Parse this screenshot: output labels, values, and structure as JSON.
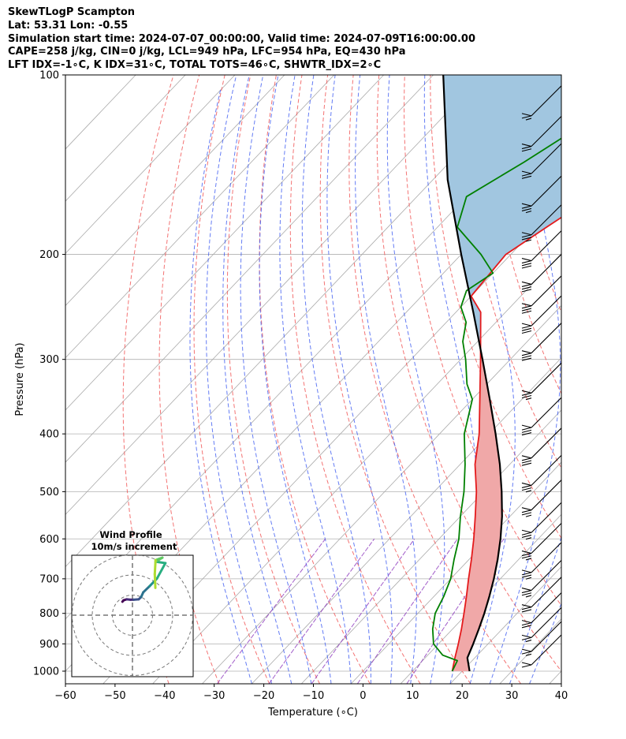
{
  "header": {
    "line1": "SkewTLogP Scampton",
    "line2": "Lat: 53.31   Lon: -0.55",
    "line3": "Simulation start time: 2024-07-07_00:00:00, Valid time: 2024-07-09T16:00:00.00",
    "line4": "CAPE=258 j/kg, CIN=0 j/kg, LCL=949 hPa, LFC=954 hPa, EQ=430 hPa",
    "line5": "LFT IDX=-1∘C, K IDX=31∘C, TOTAL TOTS=46∘C, SHWTR_IDX=2∘C"
  },
  "chart_data": {
    "type": "skewt-logp",
    "xlabel": "Temperature (∘C)",
    "ylabel": "Pressure (hPa)",
    "xlim": [
      -60,
      40
    ],
    "plim": [
      1050,
      100
    ],
    "x_ticks": [
      -60,
      -50,
      -40,
      -30,
      -20,
      -10,
      0,
      10,
      20,
      30,
      40
    ],
    "x_tick_labels": [
      "−60",
      "−50",
      "−40",
      "−30",
      "−20",
      "−10",
      "0",
      "10",
      "20",
      "30",
      "40"
    ],
    "p_ticks": [
      1000,
      900,
      800,
      700,
      600,
      500,
      400,
      300,
      200,
      100
    ],
    "p_tick_labels": [
      "1000",
      "900",
      "800",
      "700",
      "600",
      "500",
      "400",
      "300",
      "200",
      "100"
    ],
    "grid": true,
    "colors": {
      "temperature": "#e41a1c",
      "dewpoint": "#008000",
      "parcel": "#000000",
      "cape_fill": "#a1c6e0",
      "cin_fill": "#f0a8a8",
      "dry_adiabat": "#f05050",
      "moist_adiabat": "#3050f0",
      "mixing_ratio": "#9040c0",
      "isotherm_grid": "#aaaaaa"
    },
    "temperature": {
      "p": [
        1000,
        950,
        900,
        850,
        800,
        750,
        700,
        650,
        600,
        550,
        500,
        450,
        400,
        350,
        300,
        250,
        235,
        200,
        180,
        160,
        140,
        120,
        100
      ],
      "t": [
        18,
        16,
        14,
        11.8,
        9.3,
        6.6,
        3.6,
        0.5,
        -3,
        -7,
        -11.5,
        -17,
        -22,
        -28.5,
        -36,
        -45,
        -50,
        -51,
        -48,
        -44.5,
        -45,
        -47,
        -51
      ]
    },
    "dewpoint": {
      "p": [
        1000,
        960,
        940,
        900,
        850,
        800,
        750,
        700,
        650,
        600,
        550,
        500,
        450,
        400,
        350,
        330,
        300,
        280,
        260,
        245,
        230,
        215,
        200,
        180,
        160,
        140,
        120,
        100
      ],
      "t": [
        18,
        17,
        13,
        9,
        6,
        3.5,
        2,
        0,
        -3,
        -6,
        -10,
        -14,
        -19,
        -25,
        -30,
        -34,
        -39,
        -43,
        -46,
        -50,
        -52,
        -50,
        -56,
        -66,
        -70,
        -65,
        -60,
        -55
      ]
    },
    "parcel": {
      "p": [
        1000,
        950,
        900,
        850,
        800,
        750,
        700,
        650,
        600,
        550,
        500,
        450,
        400,
        350,
        300,
        250,
        200,
        150,
        100
      ],
      "t": [
        21.5,
        18.5,
        17,
        15.3,
        13.4,
        11.2,
        8.7,
        5.8,
        2.4,
        -1.6,
        -6.4,
        -12,
        -18.7,
        -26.5,
        -35.6,
        -46.5,
        -60,
        -77,
        -98
      ]
    },
    "wind_barbs": {
      "p": [
        1000,
        950,
        900,
        850,
        800,
        750,
        700,
        650,
        600,
        550,
        500,
        450,
        400,
        350,
        300,
        270,
        250,
        230,
        210,
        190,
        170,
        150,
        135,
        120
      ],
      "speed_kt": [
        10,
        15,
        15,
        20,
        20,
        25,
        25,
        25,
        25,
        25,
        25,
        30,
        30,
        25,
        30,
        30,
        30,
        30,
        30,
        25,
        25,
        20,
        20,
        15
      ]
    },
    "wind_profile_inset": {
      "title": "Wind Profile",
      "subtitle": "10m/s increment",
      "rings_ms": [
        10,
        20,
        30
      ]
    }
  }
}
